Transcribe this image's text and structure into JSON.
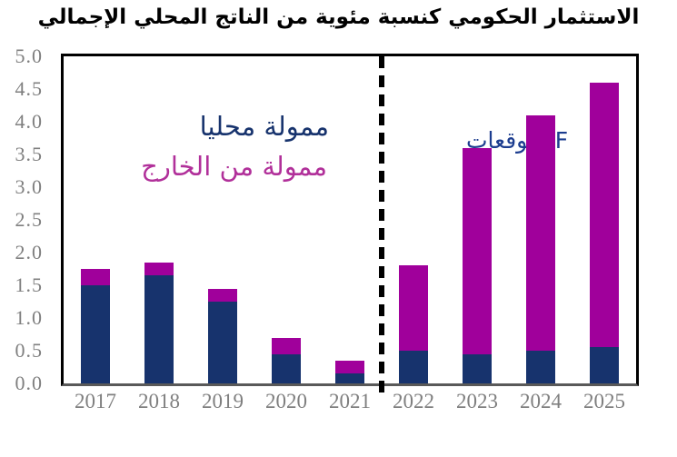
{
  "title": "الاستثمار الحكومي كنسبة مئوية من الناتج المحلي الإجمالي",
  "legend": {
    "domestic": "ممولة محليا",
    "foreign": "ممولة من الخارج",
    "forecast": "توقعات IIF"
  },
  "colors": {
    "domestic_bar": "#17336d",
    "foreign_bar": "#a0009b",
    "legend_domestic_text": "#17336d",
    "legend_foreign_text": "#b1309a",
    "forecast_text": "#1c3d8f",
    "axis_text": "#7f7f7f",
    "axis_line": "#595959",
    "frame_line": "#000000",
    "divider_line": "#000000"
  },
  "chart_data": {
    "type": "bar",
    "stacked": true,
    "title": "الاستثمار الحكومي كنسبة مئوية من الناتج المحلي الإجمالي",
    "categories": [
      "2017",
      "2018",
      "2019",
      "2020",
      "2021",
      "2022",
      "2023",
      "2024",
      "2025"
    ],
    "series": [
      {
        "name": "ممولة محليا",
        "color": "#17336d",
        "values": [
          1.5,
          1.65,
          1.25,
          0.45,
          0.15,
          0.5,
          0.45,
          0.5,
          0.55
        ]
      },
      {
        "name": "ممولة من الخارج",
        "color": "#a0009b",
        "values": [
          0.25,
          0.2,
          0.2,
          0.25,
          0.2,
          1.3,
          3.15,
          3.6,
          4.05
        ]
      }
    ],
    "totals": [
      1.75,
      1.85,
      1.45,
      0.7,
      0.35,
      1.8,
      3.6,
      4.1,
      4.6
    ],
    "xlabel": "",
    "ylabel": "",
    "ylim": [
      0,
      5
    ],
    "ytick_step": 0.5,
    "ytick_labels": [
      "0.0",
      "0.5",
      "1.0",
      "1.5",
      "2.0",
      "2.5",
      "3.0",
      "3.5",
      "4.0",
      "4.5",
      "5.0"
    ],
    "grid": "off",
    "legend_position": "inside-top-left",
    "divider_after_category": "2021",
    "forecast_label": "توقعات IIF"
  }
}
